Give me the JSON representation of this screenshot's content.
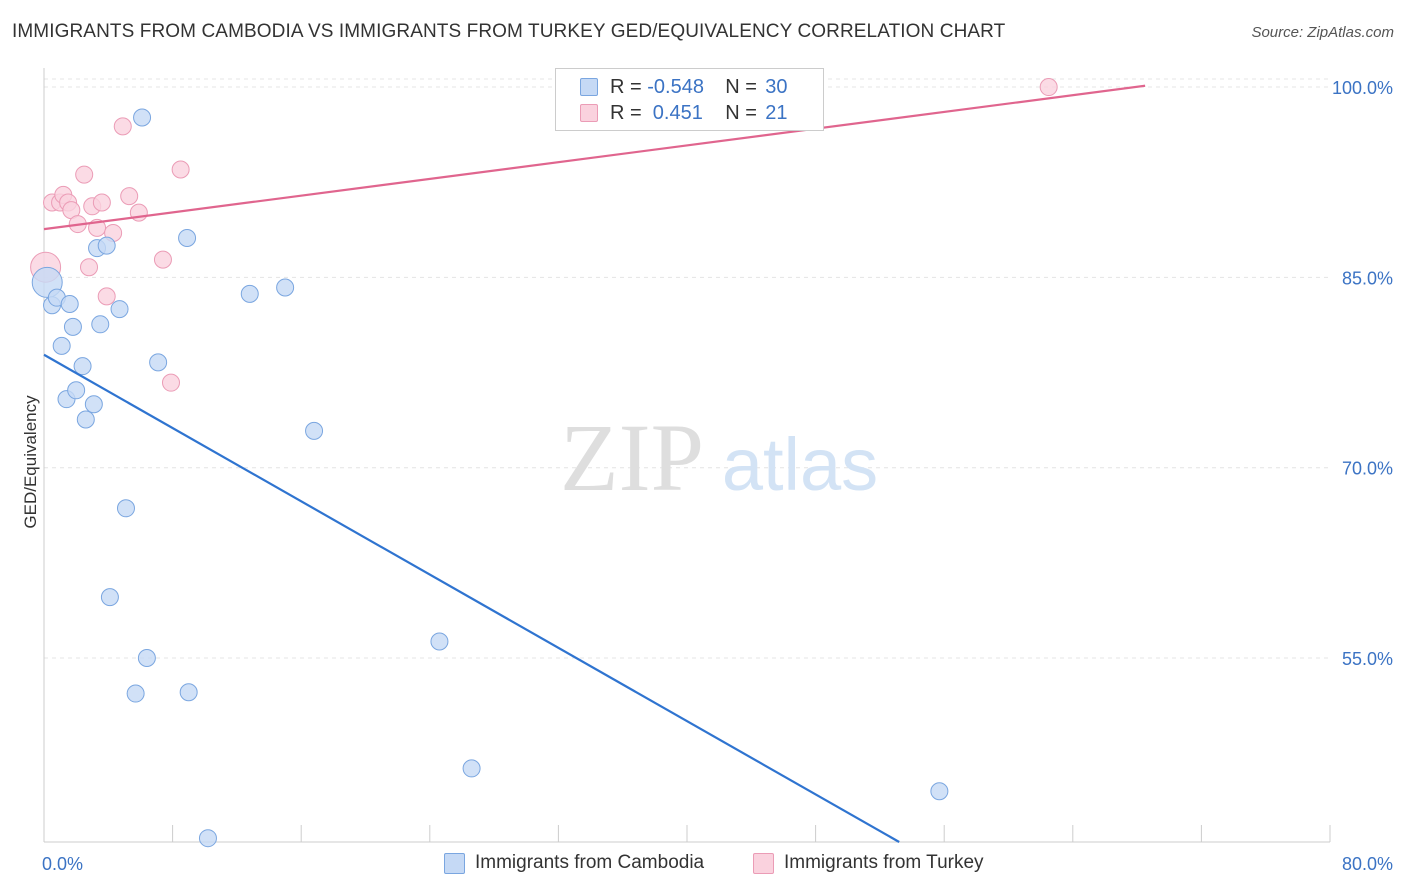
{
  "title": "IMMIGRANTS FROM CAMBODIA VS IMMIGRANTS FROM TURKEY GED/EQUIVALENCY CORRELATION CHART",
  "source": "Source: ZipAtlas.com",
  "watermark": {
    "zip": "ZIP",
    "atlas": "atlas"
  },
  "legend": {
    "cambodia": {
      "r_label": "R = ",
      "r_value": "-0.548",
      "n_label": "N = ",
      "n_value": "30"
    },
    "turkey": {
      "r_label": "R = ",
      "r_value": " 0.451",
      "n_label": "N = ",
      "n_value": "21"
    }
  },
  "chart_data": {
    "type": "scatter",
    "title": "IMMIGRANTS FROM CAMBODIA VS IMMIGRANTS FROM TURKEY GED/EQUIVALENCY CORRELATION CHART",
    "xlabel": "",
    "ylabel": "GED/Equivalency",
    "xlim": [
      0,
      80
    ],
    "ylim": [
      40.5,
      101.5
    ],
    "x_tick_labels": [
      "0.0%",
      "80.0%"
    ],
    "y_ticks": [
      55,
      70,
      85,
      100
    ],
    "y_tick_labels": [
      "55.0%",
      "70.0%",
      "85.0%",
      "100.0%"
    ],
    "grid": true,
    "colors": {
      "cambodia_fill": "#c5d9f5",
      "cambodia_stroke": "#7aa6e0",
      "cambodia_line": "#2f74d0",
      "turkey_fill": "#fad2de",
      "turkey_stroke": "#eb9cb6",
      "turkey_line": "#e0658e",
      "tick_text": "#3b73c4"
    },
    "series": [
      {
        "name": "Immigrants from Cambodia",
        "points": [
          [
            0.2,
            84.6
          ],
          [
            0.5,
            82.8
          ],
          [
            0.8,
            83.4
          ],
          [
            1.1,
            79.6
          ],
          [
            1.4,
            75.4
          ],
          [
            1.6,
            82.9
          ],
          [
            1.8,
            81.1
          ],
          [
            2.0,
            76.1
          ],
          [
            2.4,
            78.0
          ],
          [
            2.6,
            73.8
          ],
          [
            3.1,
            75.0
          ],
          [
            3.3,
            87.3
          ],
          [
            3.5,
            81.3
          ],
          [
            3.9,
            87.5
          ],
          [
            4.1,
            59.8
          ],
          [
            4.7,
            82.5
          ],
          [
            5.1,
            66.8
          ],
          [
            5.7,
            52.2
          ],
          [
            6.1,
            97.6
          ],
          [
            6.4,
            55.0
          ],
          [
            7.1,
            78.3
          ],
          [
            8.9,
            88.1
          ],
          [
            9.0,
            52.3
          ],
          [
            10.2,
            40.8
          ],
          [
            12.8,
            83.7
          ],
          [
            15.0,
            84.2
          ],
          [
            16.8,
            72.9
          ],
          [
            24.6,
            56.3
          ],
          [
            26.6,
            46.3
          ],
          [
            55.7,
            44.5
          ]
        ],
        "trend": {
          "x": [
            0,
            53.2
          ],
          "y": [
            78.9,
            40.5
          ]
        }
      },
      {
        "name": "Immigrants from Turkey",
        "points": [
          [
            0.1,
            85.8
          ],
          [
            0.5,
            90.9
          ],
          [
            1.0,
            90.9
          ],
          [
            1.2,
            91.5
          ],
          [
            1.5,
            90.9
          ],
          [
            1.7,
            90.3
          ],
          [
            2.1,
            89.2
          ],
          [
            2.5,
            93.1
          ],
          [
            2.8,
            85.8
          ],
          [
            3.0,
            90.6
          ],
          [
            3.3,
            88.9
          ],
          [
            3.6,
            90.9
          ],
          [
            3.9,
            83.5
          ],
          [
            4.3,
            88.5
          ],
          [
            4.9,
            96.9
          ],
          [
            5.3,
            91.4
          ],
          [
            5.9,
            90.1
          ],
          [
            7.4,
            86.4
          ],
          [
            7.9,
            76.7
          ],
          [
            8.5,
            93.5
          ],
          [
            62.5,
            100.0
          ]
        ],
        "trend": {
          "x": [
            0,
            68.5
          ],
          "y": [
            88.8,
            100.1
          ]
        }
      }
    ]
  },
  "bottom_legend": [
    "Immigrants from Cambodia",
    "Immigrants from Turkey"
  ]
}
